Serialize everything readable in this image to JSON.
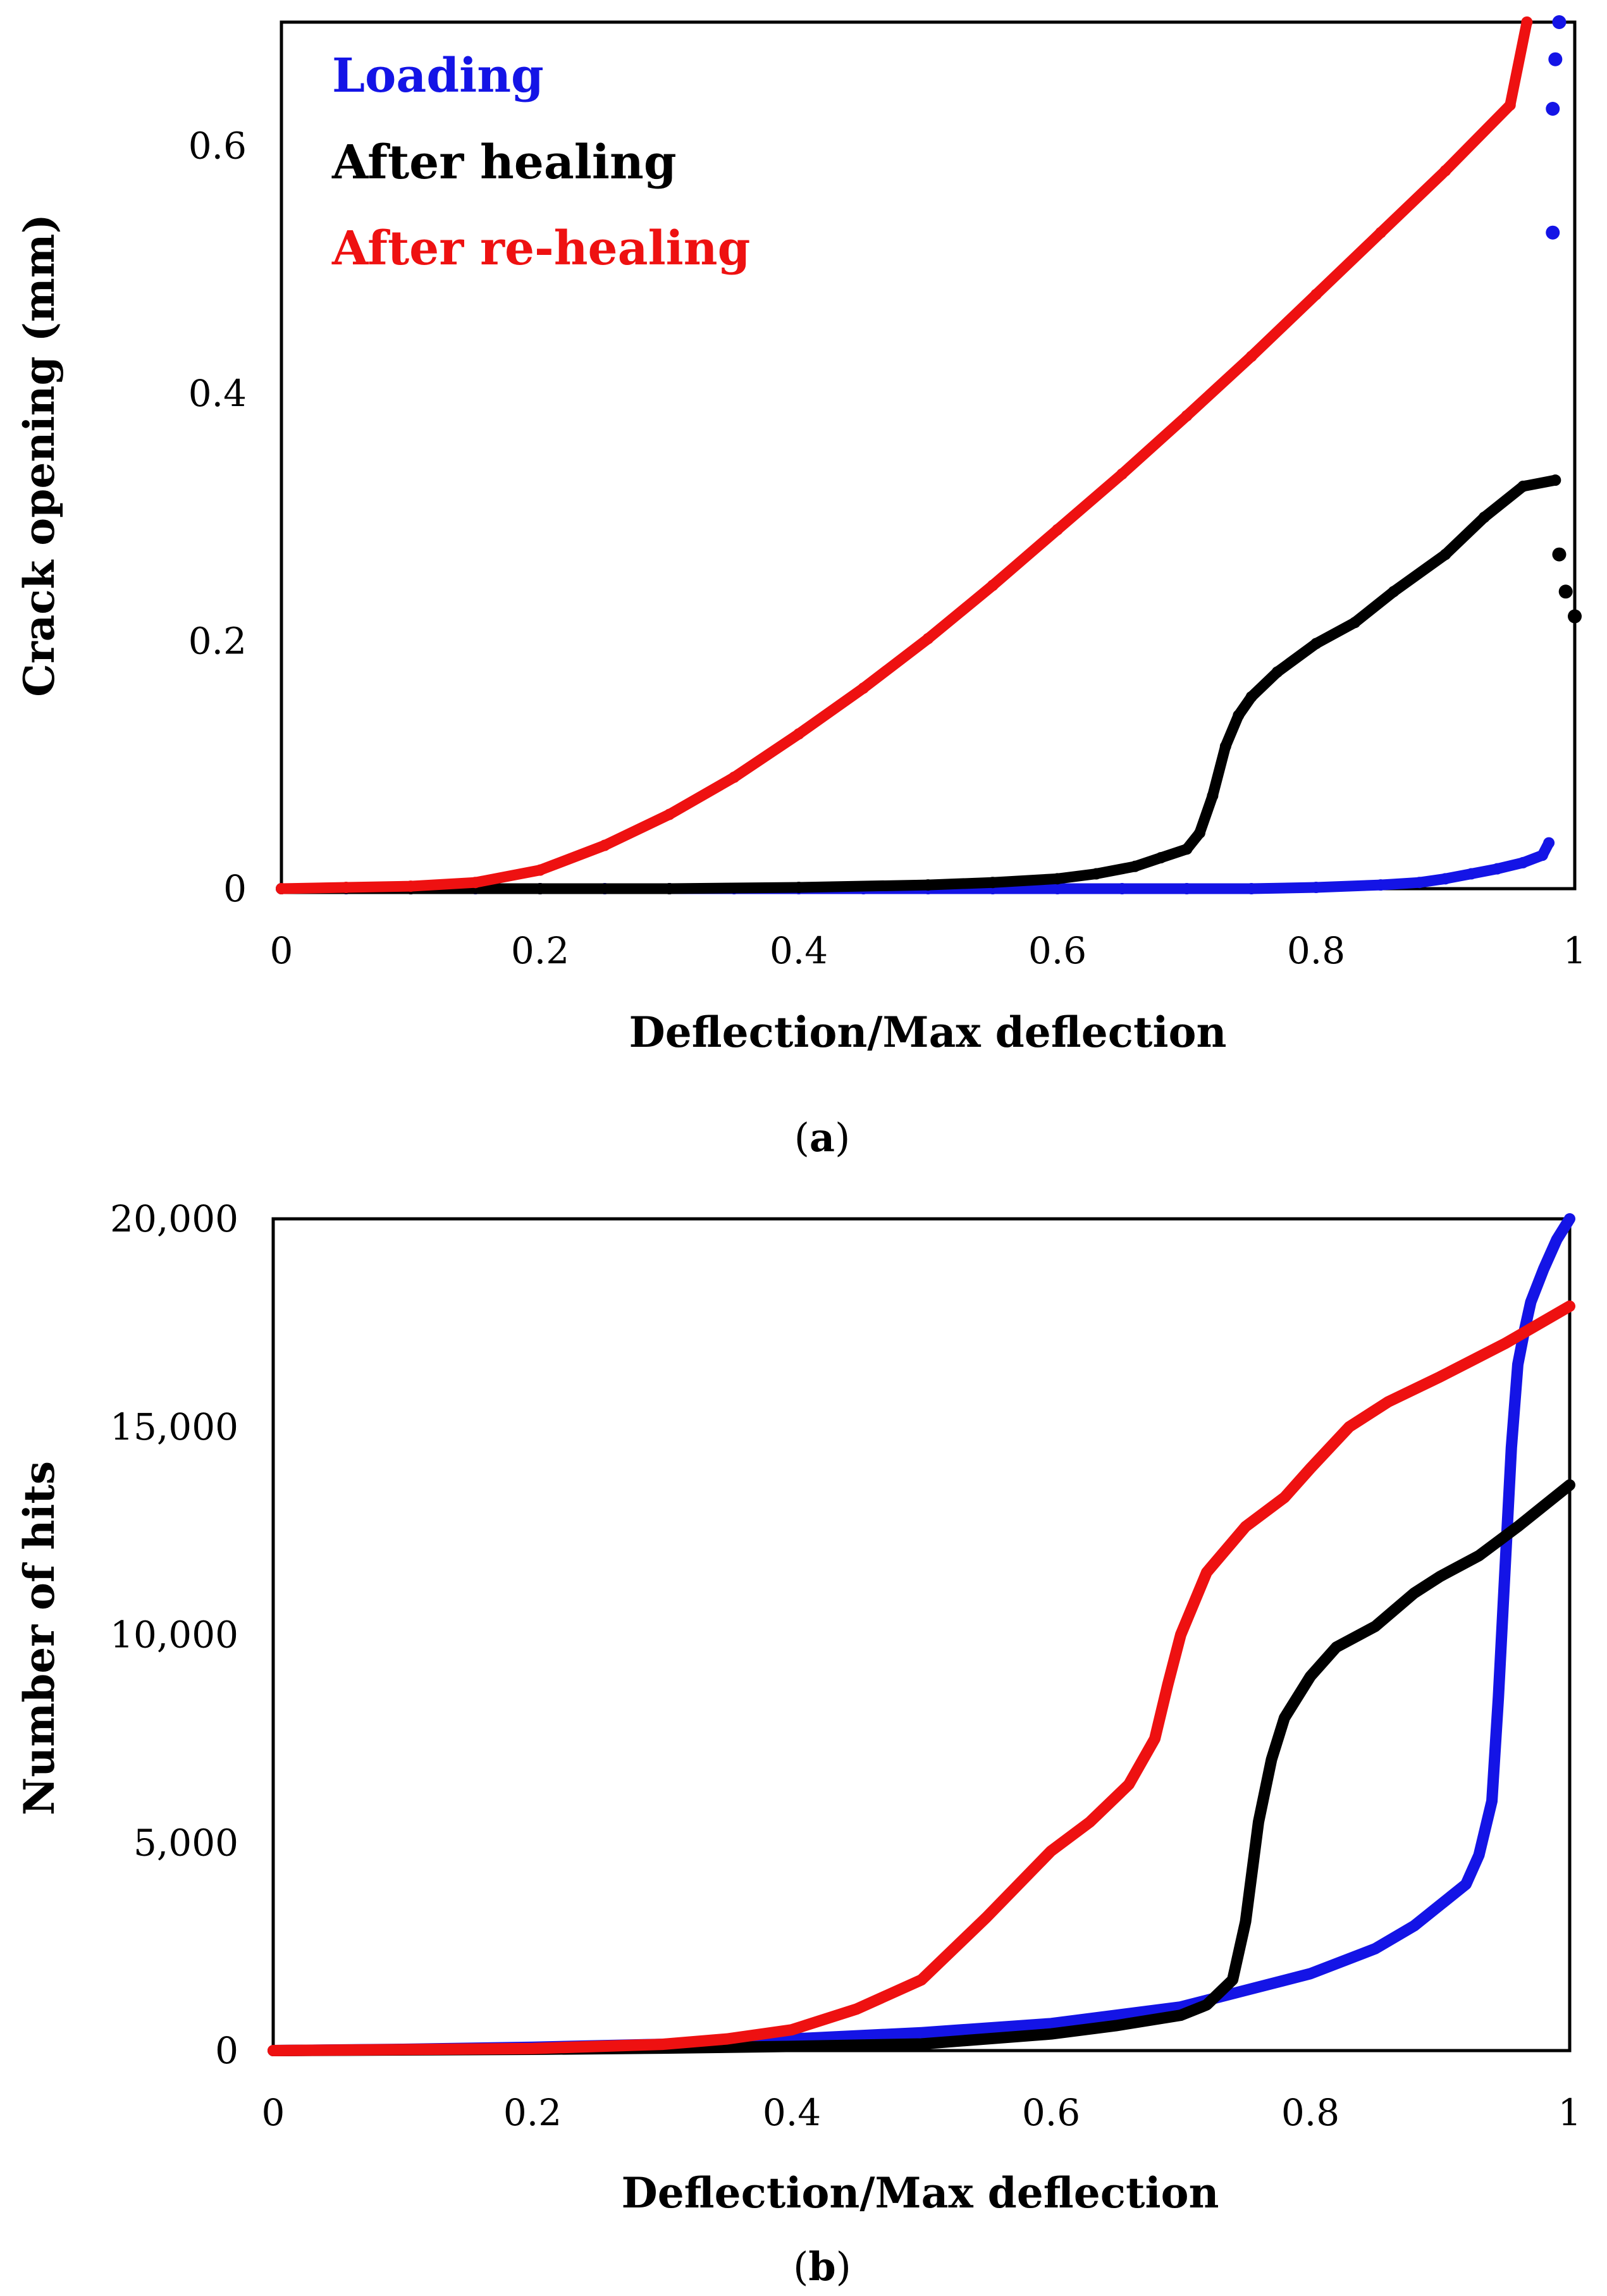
{
  "chart_data": [
    {
      "type": "scatter",
      "panel_label": "a",
      "caption_open": "(",
      "caption_close": ")",
      "xlabel": "Deflection/Max deflection",
      "ylabel": "Crack opening (mm)",
      "xlim": [
        0,
        1
      ],
      "ylim": [
        0,
        0.7
      ],
      "x_ticks": [
        "0",
        "0.2",
        "0.4",
        "0.6",
        "0.8",
        "1"
      ],
      "x_tick_values": [
        0,
        0.2,
        0.4,
        0.6,
        0.8,
        1
      ],
      "y_ticks": [
        "0",
        "0.2",
        "0.4",
        "0.6"
      ],
      "y_tick_values": [
        0,
        0.2,
        0.4,
        0.6
      ],
      "legend": [
        {
          "label": "Loading",
          "color": "#1414e6"
        },
        {
          "label": "After healing",
          "color": "#000000"
        },
        {
          "label": "After re-healing",
          "color": "#ee1111"
        }
      ],
      "series": [
        {
          "name": "Loading",
          "color": "#1414e6",
          "x": [
            0.0,
            0.05,
            0.1,
            0.15,
            0.2,
            0.25,
            0.3,
            0.35,
            0.4,
            0.45,
            0.5,
            0.55,
            0.6,
            0.65,
            0.7,
            0.75,
            0.8,
            0.85,
            0.88,
            0.9,
            0.92,
            0.94,
            0.96,
            0.975,
            0.98
          ],
          "y": [
            0.0,
            0.0,
            0.0,
            0.0,
            0.0,
            0.0,
            0.0,
            0.0,
            0.0,
            0.0,
            0.0,
            0.0,
            0.0,
            0.0,
            0.0,
            0.0,
            0.001,
            0.003,
            0.005,
            0.008,
            0.012,
            0.016,
            0.021,
            0.027,
            0.037
          ],
          "extra_points": [
            [
              0.983,
              0.53
            ],
            [
              0.983,
              0.63
            ],
            [
              0.985,
              0.67
            ],
            [
              0.988,
              0.7
            ]
          ]
        },
        {
          "name": "After healing",
          "color": "#000000",
          "x": [
            0.0,
            0.1,
            0.2,
            0.3,
            0.4,
            0.5,
            0.55,
            0.6,
            0.63,
            0.66,
            0.68,
            0.7,
            0.71,
            0.72,
            0.73,
            0.74,
            0.75,
            0.77,
            0.8,
            0.83,
            0.86,
            0.9,
            0.93,
            0.96,
            0.985
          ],
          "y": [
            0.0,
            0.0,
            0.0,
            0.0,
            0.001,
            0.003,
            0.005,
            0.008,
            0.012,
            0.018,
            0.025,
            0.032,
            0.045,
            0.075,
            0.115,
            0.14,
            0.155,
            0.175,
            0.198,
            0.215,
            0.24,
            0.27,
            0.3,
            0.325,
            0.33
          ],
          "extra_points": [
            [
              0.988,
              0.27
            ],
            [
              0.993,
              0.24
            ],
            [
              1.0,
              0.22
            ]
          ]
        },
        {
          "name": "After re-healing",
          "color": "#ee1111",
          "x": [
            0.0,
            0.05,
            0.1,
            0.15,
            0.2,
            0.25,
            0.3,
            0.35,
            0.4,
            0.45,
            0.5,
            0.55,
            0.6,
            0.65,
            0.7,
            0.75,
            0.8,
            0.85,
            0.9,
            0.95,
            0.963
          ],
          "y": [
            0.0,
            0.001,
            0.002,
            0.005,
            0.015,
            0.035,
            0.06,
            0.09,
            0.125,
            0.162,
            0.202,
            0.245,
            0.29,
            0.335,
            0.382,
            0.43,
            0.48,
            0.53,
            0.58,
            0.633,
            0.7
          ]
        }
      ]
    },
    {
      "type": "scatter",
      "panel_label": "b",
      "caption_open": "(",
      "caption_close": ")",
      "xlabel": "Deflection/Max deflection",
      "ylabel": "Number of hits",
      "xlim": [
        0,
        1
      ],
      "ylim": [
        0,
        20000
      ],
      "x_ticks": [
        "0",
        "0.2",
        "0.4",
        "0.6",
        "0.8",
        "1"
      ],
      "x_tick_values": [
        0,
        0.2,
        0.4,
        0.6,
        0.8,
        1
      ],
      "y_ticks": [
        "0",
        "5,000",
        "10,000",
        "15,000",
        "20,000"
      ],
      "y_tick_values": [
        0,
        5000,
        10000,
        15000,
        20000
      ],
      "series": [
        {
          "name": "Loading",
          "color": "#1414e6",
          "x": [
            0.0,
            0.1,
            0.2,
            0.3,
            0.4,
            0.5,
            0.6,
            0.7,
            0.75,
            0.8,
            0.85,
            0.88,
            0.9,
            0.92,
            0.93,
            0.94,
            0.945,
            0.95,
            0.955,
            0.96,
            0.965,
            0.97,
            0.98,
            0.99,
            1.0
          ],
          "y": [
            0,
            30,
            80,
            150,
            280,
            430,
            650,
            1050,
            1450,
            1850,
            2450,
            3000,
            3500,
            4000,
            4700,
            6000,
            8500,
            11500,
            14500,
            16500,
            17300,
            18000,
            18800,
            19500,
            20000
          ]
        },
        {
          "name": "After healing",
          "color": "#000000",
          "x": [
            0.0,
            0.2,
            0.3,
            0.4,
            0.5,
            0.6,
            0.65,
            0.7,
            0.72,
            0.74,
            0.75,
            0.76,
            0.77,
            0.78,
            0.8,
            0.82,
            0.85,
            0.88,
            0.9,
            0.93,
            0.96,
            0.98,
            1.0
          ],
          "y": [
            0,
            30,
            60,
            100,
            160,
            400,
            600,
            850,
            1100,
            1700,
            3100,
            5500,
            7000,
            8000,
            9000,
            9700,
            10200,
            11000,
            11400,
            11900,
            12600,
            13100,
            13600
          ]
        },
        {
          "name": "After re-healing",
          "color": "#ee1111",
          "x": [
            0.0,
            0.2,
            0.3,
            0.35,
            0.4,
            0.45,
            0.5,
            0.55,
            0.6,
            0.63,
            0.66,
            0.68,
            0.69,
            0.7,
            0.72,
            0.75,
            0.78,
            0.8,
            0.83,
            0.86,
            0.9,
            0.95,
            1.0
          ],
          "y": [
            0,
            50,
            150,
            280,
            500,
            1000,
            1700,
            3200,
            4800,
            5500,
            6400,
            7500,
            8800,
            10000,
            11500,
            12600,
            13300,
            14000,
            15000,
            15600,
            16200,
            17000,
            17900
          ]
        }
      ]
    }
  ]
}
